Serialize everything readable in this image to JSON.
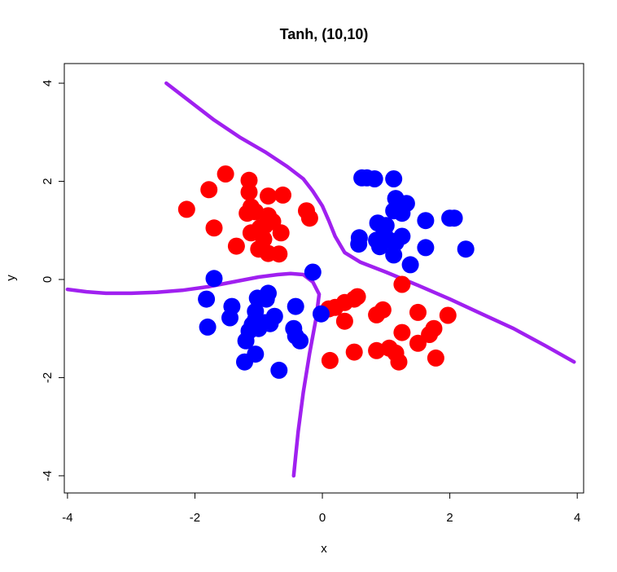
{
  "chart_data": {
    "type": "scatter",
    "title": "Tanh, (10,10)",
    "xlabel": "x",
    "ylabel": "y",
    "xlim": [
      -4.05,
      4.1
    ],
    "ylim": [
      -4.35,
      4.4
    ],
    "xticks": [
      -4,
      -2,
      0,
      2,
      4
    ],
    "yticks": [
      -4,
      -2,
      0,
      2,
      4
    ],
    "xtick_labels": [
      "-4",
      "-2",
      "0",
      "2",
      "4"
    ],
    "ytick_labels": [
      "-4",
      "-2",
      "0",
      "2",
      "4"
    ],
    "grid": false,
    "legend": "none",
    "colors": {
      "red": "#ff0000",
      "blue": "#0000ff",
      "boundary": "#a020f0"
    },
    "series": [
      {
        "color": "#ff0000",
        "points": [
          [
            -1.52,
            2.15
          ],
          [
            -1.15,
            2.02
          ],
          [
            -1.78,
            1.83
          ],
          [
            -1.15,
            1.78
          ],
          [
            -0.85,
            1.7
          ],
          [
            -0.62,
            1.72
          ],
          [
            -2.13,
            1.43
          ],
          [
            -1.12,
            1.48
          ],
          [
            -0.25,
            1.4
          ],
          [
            -1.05,
            1.38
          ],
          [
            -1.18,
            1.35
          ],
          [
            -0.85,
            1.3
          ],
          [
            -0.78,
            1.18
          ],
          [
            -0.2,
            1.25
          ],
          [
            -0.9,
            1.1
          ],
          [
            -0.98,
            1.05
          ],
          [
            -1.7,
            1.05
          ],
          [
            -1.12,
            0.95
          ],
          [
            -0.65,
            0.95
          ],
          [
            -0.92,
            0.82
          ],
          [
            -1.35,
            0.68
          ],
          [
            -1.0,
            0.62
          ],
          [
            -0.85,
            0.53
          ],
          [
            -0.68,
            0.52
          ],
          [
            1.25,
            -0.1
          ],
          [
            0.55,
            -0.35
          ],
          [
            0.5,
            -0.4
          ],
          [
            0.35,
            -0.47
          ],
          [
            0.2,
            -0.57
          ],
          [
            0.1,
            -0.6
          ],
          [
            0.95,
            -0.62
          ],
          [
            1.5,
            -0.67
          ],
          [
            0.85,
            -0.72
          ],
          [
            1.97,
            -0.73
          ],
          [
            0.35,
            -0.85
          ],
          [
            1.75,
            -1.0
          ],
          [
            1.25,
            -1.08
          ],
          [
            1.68,
            -1.12
          ],
          [
            1.5,
            -1.3
          ],
          [
            1.05,
            -1.4
          ],
          [
            0.85,
            -1.45
          ],
          [
            0.5,
            -1.48
          ],
          [
            1.15,
            -1.5
          ],
          [
            1.78,
            -1.6
          ],
          [
            0.12,
            -1.65
          ],
          [
            1.2,
            -1.68
          ]
        ]
      },
      {
        "color": "#0000ff",
        "points": [
          [
            0.62,
            2.07
          ],
          [
            0.7,
            2.07
          ],
          [
            0.82,
            2.05
          ],
          [
            1.12,
            2.05
          ],
          [
            1.15,
            1.65
          ],
          [
            1.32,
            1.55
          ],
          [
            1.12,
            1.4
          ],
          [
            1.25,
            1.35
          ],
          [
            1.62,
            1.2
          ],
          [
            2.0,
            1.25
          ],
          [
            2.07,
            1.25
          ],
          [
            0.87,
            1.15
          ],
          [
            1.0,
            1.1
          ],
          [
            0.97,
            0.95
          ],
          [
            0.58,
            0.85
          ],
          [
            1.25,
            0.88
          ],
          [
            0.85,
            0.8
          ],
          [
            1.05,
            0.8
          ],
          [
            0.57,
            0.72
          ],
          [
            1.15,
            0.75
          ],
          [
            0.9,
            0.67
          ],
          [
            1.62,
            0.65
          ],
          [
            2.25,
            0.62
          ],
          [
            1.12,
            0.5
          ],
          [
            1.38,
            0.3
          ],
          [
            -0.15,
            0.15
          ],
          [
            -1.7,
            0.02
          ],
          [
            -0.85,
            -0.28
          ],
          [
            -1.02,
            -0.38
          ],
          [
            -0.88,
            -0.4
          ],
          [
            -1.82,
            -0.4
          ],
          [
            -1.42,
            -0.55
          ],
          [
            -0.42,
            -0.55
          ],
          [
            -1.05,
            -0.65
          ],
          [
            -0.02,
            -0.7
          ],
          [
            -1.45,
            -0.78
          ],
          [
            -0.75,
            -0.75
          ],
          [
            -1.05,
            -0.82
          ],
          [
            -0.9,
            -0.88
          ],
          [
            -0.82,
            -0.9
          ],
          [
            -1.1,
            -0.92
          ],
          [
            -1.8,
            -0.97
          ],
          [
            -1.0,
            -1.0
          ],
          [
            -1.15,
            -1.05
          ],
          [
            -0.45,
            -1.0
          ],
          [
            -0.42,
            -1.15
          ],
          [
            -0.35,
            -1.25
          ],
          [
            -1.2,
            -1.25
          ],
          [
            -1.05,
            -1.52
          ],
          [
            -1.22,
            -1.68
          ],
          [
            -0.68,
            -1.85
          ]
        ]
      }
    ],
    "boundaries": [
      {
        "color": "#a020f0",
        "points": [
          [
            -2.45,
            4.0
          ],
          [
            -2.1,
            3.65
          ],
          [
            -1.7,
            3.25
          ],
          [
            -1.3,
            2.9
          ],
          [
            -0.9,
            2.6
          ],
          [
            -0.55,
            2.3
          ],
          [
            -0.3,
            2.05
          ],
          [
            -0.15,
            1.8
          ],
          [
            0.0,
            1.5
          ],
          [
            0.1,
            1.2
          ],
          [
            0.2,
            0.88
          ],
          [
            0.35,
            0.55
          ],
          [
            0.6,
            0.35
          ],
          [
            1.0,
            0.15
          ],
          [
            1.5,
            -0.12
          ],
          [
            2.0,
            -0.4
          ],
          [
            2.5,
            -0.7
          ],
          [
            3.0,
            -1.0
          ],
          [
            3.5,
            -1.35
          ],
          [
            3.95,
            -1.68
          ]
        ]
      },
      {
        "color": "#a020f0",
        "points": [
          [
            -4.0,
            -0.2
          ],
          [
            -3.7,
            -0.25
          ],
          [
            -3.4,
            -0.28
          ],
          [
            -3.0,
            -0.28
          ],
          [
            -2.6,
            -0.26
          ],
          [
            -2.2,
            -0.22
          ],
          [
            -1.8,
            -0.15
          ],
          [
            -1.4,
            -0.05
          ],
          [
            -1.0,
            0.05
          ],
          [
            -0.7,
            0.1
          ],
          [
            -0.5,
            0.12
          ],
          [
            -0.3,
            0.1
          ],
          [
            -0.15,
            -0.05
          ],
          [
            -0.05,
            -0.3
          ],
          [
            -0.1,
            -0.8
          ],
          [
            -0.2,
            -1.5
          ],
          [
            -0.3,
            -2.3
          ],
          [
            -0.38,
            -3.1
          ],
          [
            -0.42,
            -3.6
          ],
          [
            -0.45,
            -4.0
          ]
        ]
      }
    ]
  }
}
